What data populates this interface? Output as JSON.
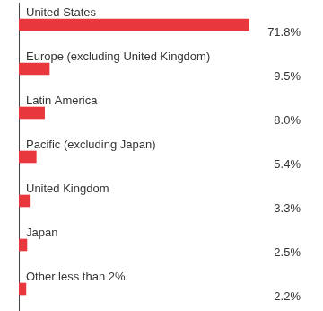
{
  "chart_data": {
    "type": "bar",
    "orientation": "horizontal",
    "categories": [
      "United States",
      "Europe (excluding United Kingdom)",
      "Latin America",
      "Pacific (excluding Japan)",
      "United Kingdom",
      "Japan",
      "Other less than 2%"
    ],
    "values": [
      71.8,
      9.5,
      8.0,
      5.4,
      3.3,
      2.5,
      2.2
    ],
    "value_labels": [
      "71.8%",
      "9.5%",
      "8.0%",
      "5.4%",
      "3.3%",
      "2.5%",
      "2.2%"
    ],
    "data_labels": true,
    "tick_labels": false,
    "grid": false,
    "color": "#e8383d"
  }
}
